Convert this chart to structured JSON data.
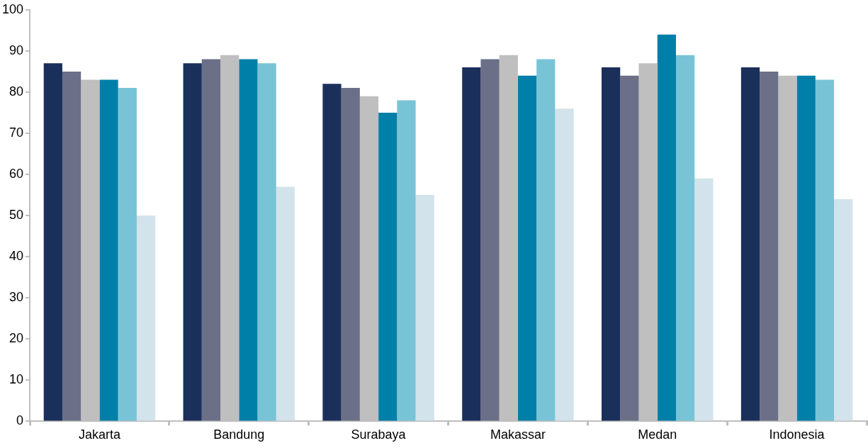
{
  "chart_data": {
    "type": "bar",
    "categories": [
      "Jakarta",
      "Bandung",
      "Surabaya",
      "Makassar",
      "Medan",
      "Indonesia"
    ],
    "series": [
      {
        "color": "#1b2f5b",
        "values": [
          87,
          87,
          82,
          86,
          86,
          86
        ]
      },
      {
        "color": "#6b7088",
        "values": [
          85,
          88,
          81,
          88,
          84,
          85
        ]
      },
      {
        "color": "#bfbfbf",
        "values": [
          83,
          89,
          79,
          89,
          87,
          84
        ]
      },
      {
        "color": "#0080a8",
        "values": [
          83,
          88,
          75,
          84,
          94,
          84
        ]
      },
      {
        "color": "#78c4d6",
        "values": [
          81,
          87,
          78,
          88,
          89,
          83
        ]
      },
      {
        "color": "#d2e3ec",
        "values": [
          50,
          57,
          55,
          76,
          59,
          54
        ]
      }
    ],
    "ylim": [
      0,
      100
    ],
    "yticks": [
      0,
      10,
      20,
      30,
      40,
      50,
      60,
      70,
      80,
      90,
      100
    ],
    "grid": false,
    "legend": false
  }
}
